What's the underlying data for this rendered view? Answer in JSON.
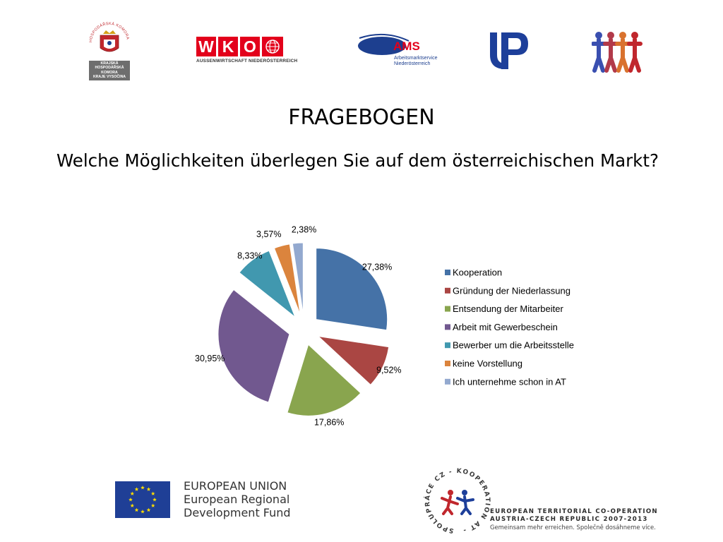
{
  "header": {
    "logos": {
      "chamber": {
        "arc_text": "HOSPODÁŘSKÁ KOMORA ČESKÉ REPUBLIKY",
        "plate_lines": [
          "KRAJSKÁ",
          "HOSPODÁŘSKÁ",
          "KOMORA",
          "KRAJE VYSOČINA"
        ]
      },
      "wko": {
        "letters": [
          "W",
          "K",
          "O"
        ],
        "subtitle": "AUSSENWIRTSCHAFT NIEDERÖSTERREICH"
      },
      "ams": {
        "mark": "AMS",
        "line1": "Arbeitsmarktservice",
        "line2": "Niederösterreich"
      }
    }
  },
  "title": "FRAGEBOGEN",
  "question": "Welche Möglichkeiten überlegen Sie auf dem österreichischen Markt?",
  "chart_data": {
    "type": "pie",
    "exploded": true,
    "legend_position": "right",
    "series": [
      {
        "name": "Kooperation",
        "value": 27.38,
        "label": "27,38%",
        "color": "#4572a7"
      },
      {
        "name": "Gründung der Niederlassung",
        "value": 9.52,
        "label": "9,52%",
        "color": "#aa4643"
      },
      {
        "name": "Entsendung der Mitarbeiter",
        "value": 17.86,
        "label": "17,86%",
        "color": "#89a54e"
      },
      {
        "name": "Arbeit mit Gewerbeschein",
        "value": 30.95,
        "label": "30,95%",
        "color": "#71588f"
      },
      {
        "name": "Bewerber um die Arbeitsstelle",
        "value": 8.33,
        "label": "8,33%",
        "color": "#4198af"
      },
      {
        "name": "keine Vorstellung",
        "value": 3.57,
        "label": "3,57%",
        "color": "#db843d"
      },
      {
        "name": "Ich unternehme schon in AT",
        "value": 2.38,
        "label": "2,38%",
        "color": "#93a9cf"
      }
    ]
  },
  "footer": {
    "eu": {
      "line1": "EUROPEAN UNION",
      "line2": "European Regional",
      "line3": "Development Fund",
      "flag_color": "#1f3f96",
      "star_color": "#ffdd00"
    },
    "etc": {
      "seal_text": "SPOLUPRÁCE CZ - KOOPERATION AT -",
      "line1": "EUROPEAN TERRITORIAL CO-OPERATION",
      "line2": "AUSTRIA-CZECH REPUBLIC 2007-2013",
      "line3": "Gemeinsam mehr erreichen. Společně dosáhneme více."
    }
  }
}
